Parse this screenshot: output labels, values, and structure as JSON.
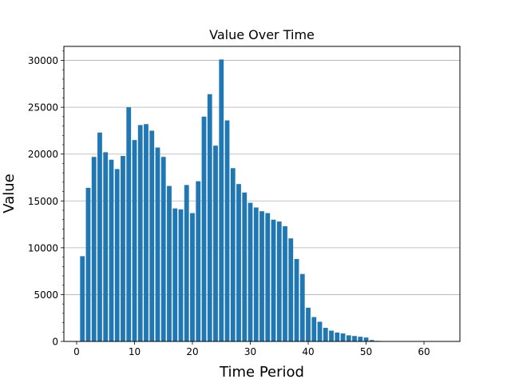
{
  "chart_data": {
    "type": "bar",
    "title": "Value Over Time",
    "xlabel": "Time Period",
    "ylabel": "Value",
    "xlim": [
      -2.2,
      66.2
    ],
    "ylim": [
      0,
      31500
    ],
    "xticks": [
      0,
      10,
      20,
      30,
      40,
      50,
      60
    ],
    "yticks": [
      0,
      5000,
      10000,
      15000,
      20000,
      25000,
      30000
    ],
    "grid": "y-major",
    "legend": "none",
    "bar_color": "#1f77b4",
    "x": [
      1,
      2,
      3,
      4,
      5,
      6,
      7,
      8,
      9,
      10,
      11,
      12,
      13,
      14,
      15,
      16,
      17,
      18,
      19,
      20,
      21,
      22,
      23,
      24,
      25,
      26,
      27,
      28,
      29,
      30,
      31,
      32,
      33,
      34,
      35,
      36,
      37,
      38,
      39,
      40,
      41,
      42,
      43,
      44,
      45,
      46,
      47,
      48,
      49,
      50,
      51,
      52,
      53,
      54,
      55,
      56,
      57,
      58,
      59,
      60,
      61,
      62,
      63,
      64
    ],
    "values": [
      9100,
      16400,
      19700,
      22300,
      20200,
      19400,
      18400,
      19800,
      25000,
      21500,
      23100,
      23200,
      22500,
      20700,
      19700,
      16600,
      14200,
      14100,
      16700,
      13700,
      17100,
      24000,
      26400,
      20900,
      30100,
      23600,
      18500,
      16800,
      15900,
      14800,
      14300,
      13900,
      13700,
      13000,
      12800,
      12300,
      11000,
      8800,
      7200,
      3600,
      2600,
      2100,
      1450,
      1150,
      950,
      850,
      650,
      580,
      500,
      420,
      150,
      60,
      30,
      20,
      15,
      10,
      10,
      8,
      6,
      5,
      5,
      4,
      3,
      3
    ]
  }
}
